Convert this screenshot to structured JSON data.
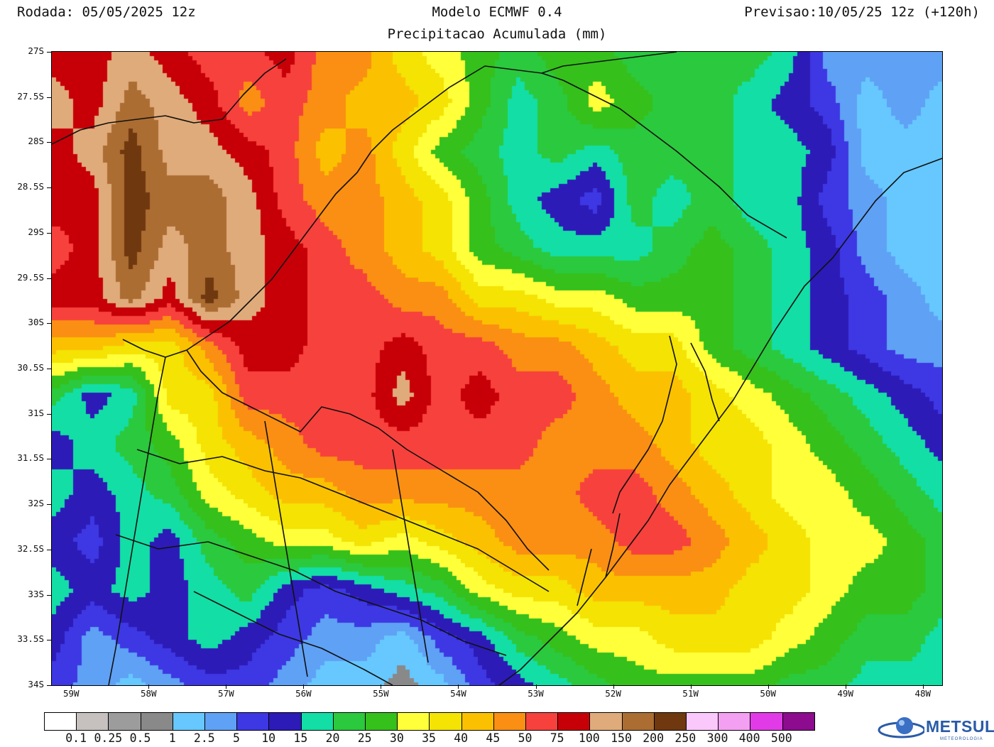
{
  "header": {
    "run": "Rodada: 05/05/2025 12z",
    "model": "Modelo ECMWF 0.4",
    "forecast": "Previsao:10/05/25 12z (+120h)",
    "subtitle": "Precipitacao Acumulada (mm)"
  },
  "map": {
    "lon_range": [
      -59.25,
      -47.75
    ],
    "lat_range": [
      -34,
      -27
    ],
    "lat_ticks": [
      "27S",
      "27.5S",
      "28S",
      "28.5S",
      "29S",
      "29.5S",
      "30S",
      "30.5S",
      "31S",
      "31.5S",
      "32S",
      "32.5S",
      "33S",
      "33.5S",
      "34S"
    ],
    "lat_values": [
      -27,
      -27.5,
      -28,
      -28.5,
      -29,
      -29.5,
      -30,
      -30.5,
      -31,
      -31.5,
      -32,
      -32.5,
      -33,
      -33.5,
      -34
    ],
    "lon_ticks": [
      "59W",
      "58W",
      "57W",
      "56W",
      "55W",
      "54W",
      "53W",
      "52W",
      "51W",
      "50W",
      "49W",
      "48W"
    ],
    "lon_values": [
      -59,
      -58,
      -57,
      -56,
      -55,
      -54,
      -53,
      -52,
      -51,
      -50,
      -49,
      -48
    ],
    "precip_field": {
      "note_levels": "cell values are approximate colorbar class indices (0=<0.1mm ... 21=>500mm)",
      "cols": 24,
      "rows": 14,
      "cells": [
        [
          16,
          16,
          17,
          16,
          15,
          15,
          16,
          14,
          14,
          12,
          11,
          10,
          9,
          10,
          10,
          9,
          9,
          9,
          9,
          8,
          5,
          5,
          5,
          5
        ],
        [
          17,
          16,
          18,
          17,
          16,
          14,
          15,
          14,
          13,
          13,
          12,
          10,
          8,
          9,
          11,
          10,
          9,
          9,
          8,
          7,
          6,
          4,
          5,
          4
        ],
        [
          16,
          17,
          19,
          17,
          17,
          16,
          15,
          13,
          14,
          12,
          10,
          9,
          8,
          9,
          8,
          9,
          9,
          9,
          8,
          8,
          7,
          4,
          4,
          4
        ],
        [
          16,
          16,
          19,
          18,
          18,
          17,
          15,
          14,
          14,
          13,
          12,
          10,
          8,
          7,
          6,
          9,
          8,
          9,
          8,
          8,
          6,
          5,
          4,
          4
        ],
        [
          15,
          16,
          19,
          17,
          18,
          17,
          16,
          15,
          14,
          13,
          12,
          10,
          9,
          8,
          8,
          8,
          9,
          10,
          9,
          8,
          7,
          5,
          4,
          4
        ],
        [
          16,
          16,
          18,
          16,
          19,
          17,
          16,
          15,
          15,
          14,
          14,
          12,
          12,
          11,
          11,
          10,
          10,
          10,
          9,
          8,
          7,
          6,
          5,
          4
        ],
        [
          13,
          13,
          12,
          12,
          14,
          16,
          16,
          15,
          15,
          16,
          15,
          15,
          14,
          14,
          13,
          12,
          12,
          10,
          9,
          8,
          7,
          6,
          5,
          5
        ],
        [
          9,
          7,
          8,
          12,
          12,
          15,
          15,
          15,
          15,
          17,
          15,
          16,
          15,
          15,
          14,
          13,
          13,
          12,
          11,
          10,
          9,
          8,
          7,
          6
        ],
        [
          7,
          8,
          9,
          10,
          12,
          13,
          14,
          15,
          15,
          15,
          15,
          15,
          15,
          14,
          14,
          14,
          13,
          12,
          12,
          11,
          10,
          9,
          8,
          7
        ],
        [
          8,
          7,
          8,
          9,
          11,
          12,
          13,
          13,
          14,
          14,
          14,
          14,
          14,
          14,
          15,
          15,
          14,
          13,
          12,
          11,
          11,
          10,
          9,
          8
        ],
        [
          7,
          6,
          8,
          7,
          9,
          10,
          11,
          11,
          12,
          11,
          12,
          13,
          14,
          14,
          14,
          15,
          15,
          14,
          13,
          12,
          11,
          11,
          10,
          9
        ],
        [
          8,
          7,
          8,
          7,
          8,
          9,
          7,
          6,
          7,
          8,
          9,
          11,
          12,
          12,
          13,
          13,
          13,
          13,
          12,
          12,
          11,
          10,
          10,
          9
        ],
        [
          7,
          5,
          6,
          7,
          8,
          7,
          6,
          5,
          5,
          4,
          6,
          7,
          9,
          10,
          11,
          11,
          12,
          12,
          12,
          11,
          10,
          9,
          9,
          8
        ],
        [
          6,
          5,
          4,
          5,
          6,
          6,
          5,
          4,
          4,
          3,
          4,
          6,
          7,
          8,
          9,
          10,
          10,
          10,
          10,
          9,
          9,
          8,
          8,
          8
        ]
      ]
    }
  },
  "colorbar": {
    "colors": [
      "#ffffff",
      "#c6c0bf",
      "#9c9c9c",
      "#898989",
      "#66c8ff",
      "#5fa1f5",
      "#3d38e3",
      "#2d1bb8",
      "#13dea5",
      "#2bc93d",
      "#35c01c",
      "#ffff3a",
      "#f4e303",
      "#fbc100",
      "#fa8f13",
      "#f7413d",
      "#c70008",
      "#e0ab7a",
      "#ab6d32",
      "#70380f",
      "#fac8fb",
      "#f39ff2",
      "#e13be7",
      "#8d0b8e"
    ],
    "labels": [
      "0.1",
      "0.25",
      "0.5",
      "1",
      "2.5",
      "5",
      "10",
      "15",
      "20",
      "25",
      "30",
      "35",
      "40",
      "45",
      "50",
      "75",
      "100",
      "150",
      "200",
      "250",
      "300",
      "400",
      "500"
    ]
  },
  "brand": {
    "name": "METSUL",
    "sub": "METEOROLOGIA"
  }
}
